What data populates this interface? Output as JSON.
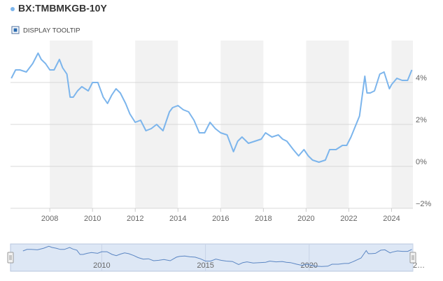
{
  "chart_data": {
    "type": "line",
    "x": [
      2006.2,
      2006.4,
      2006.6,
      2006.9,
      2007.2,
      2007.45,
      2007.6,
      2007.8,
      2008.0,
      2008.2,
      2008.45,
      2008.6,
      2008.8,
      2008.95,
      2009.1,
      2009.3,
      2009.5,
      2009.8,
      2010.0,
      2010.25,
      2010.5,
      2010.7,
      2010.9,
      2011.1,
      2011.3,
      2011.55,
      2011.75,
      2012.0,
      2012.25,
      2012.5,
      2012.75,
      2013.0,
      2013.3,
      2013.6,
      2013.75,
      2014.0,
      2014.25,
      2014.5,
      2014.75,
      2015.0,
      2015.25,
      2015.5,
      2015.75,
      2016.0,
      2016.3,
      2016.6,
      2016.8,
      2017.0,
      2017.3,
      2017.6,
      2017.9,
      2018.1,
      2018.4,
      2018.7,
      2018.9,
      2019.1,
      2019.4,
      2019.65,
      2019.9,
      2020.1,
      2020.3,
      2020.6,
      2020.9,
      2021.1,
      2021.4,
      2021.7,
      2021.9,
      2022.1,
      2022.3,
      2022.5,
      2022.75,
      2022.85,
      2023.0,
      2023.2,
      2023.45,
      2023.65,
      2023.9,
      2024.0,
      2024.25,
      2024.5,
      2024.75,
      2024.95
    ],
    "series": [
      {
        "name": "BX:TMBMKGB-10Y",
        "color": "#7cb5ec",
        "values": [
          4.2,
          4.6,
          4.6,
          4.5,
          4.9,
          5.4,
          5.1,
          4.9,
          4.6,
          4.6,
          5.1,
          4.7,
          4.4,
          3.3,
          3.3,
          3.6,
          3.8,
          3.6,
          4.0,
          4.0,
          3.3,
          3.0,
          3.4,
          3.7,
          3.5,
          3.0,
          2.5,
          2.1,
          2.2,
          1.7,
          1.8,
          2.0,
          1.7,
          2.6,
          2.8,
          2.9,
          2.7,
          2.6,
          2.2,
          1.6,
          1.6,
          2.1,
          1.8,
          1.6,
          1.5,
          0.7,
          1.2,
          1.4,
          1.1,
          1.2,
          1.3,
          1.6,
          1.4,
          1.5,
          1.3,
          1.2,
          0.8,
          0.5,
          0.8,
          0.5,
          0.3,
          0.2,
          0.3,
          0.8,
          0.8,
          1.0,
          1.0,
          1.4,
          1.9,
          2.4,
          4.3,
          3.5,
          3.5,
          3.6,
          4.4,
          4.5,
          3.7,
          3.9,
          4.2,
          4.1,
          4.1,
          4.6
        ]
      }
    ],
    "xlim": [
      2006.16,
      2025.0
    ],
    "xticks": [
      2008,
      2010,
      2012,
      2014,
      2016,
      2018,
      2020,
      2022,
      2024
    ],
    "ylim": [
      -2,
      6
    ],
    "yticks": [
      {
        "value": -2,
        "label": "−2%"
      },
      {
        "value": 0,
        "label": "0%"
      },
      {
        "value": 2,
        "label": "2%"
      },
      {
        "value": 4,
        "label": "4%"
      }
    ],
    "grid": true,
    "navigator": {
      "xlim": [
        2005.6,
        2025.0
      ],
      "ylim": [
        -1,
        6
      ],
      "xticks": [
        2010,
        2015,
        2020,
        {
          "value": 2025,
          "label": "2…"
        }
      ]
    }
  },
  "controls": {
    "tooltip_toggle": "DISPLAY TOOLTIP"
  }
}
